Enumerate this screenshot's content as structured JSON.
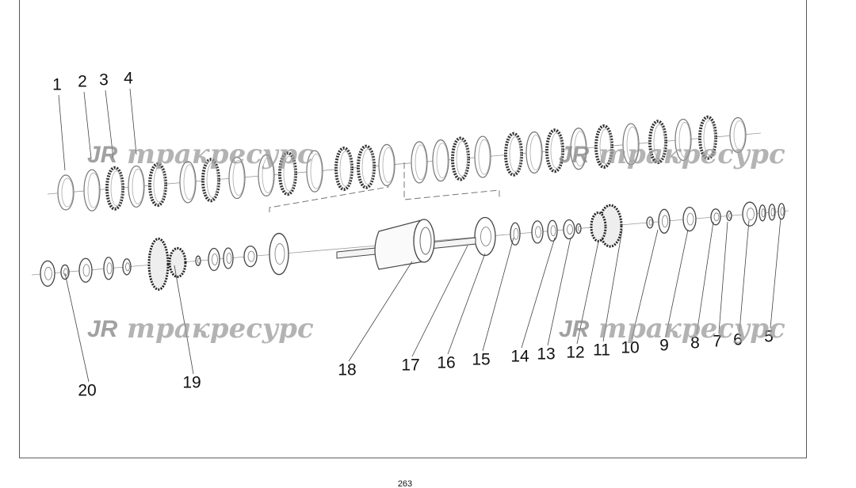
{
  "callouts": [
    "1",
    "2",
    "3",
    "4",
    "5",
    "6",
    "7",
    "8",
    "9",
    "10",
    "11",
    "12",
    "13",
    "14",
    "15",
    "16",
    "17",
    "18",
    "19",
    "20"
  ],
  "watermarks": [
    {
      "logo": "JR",
      "text": "тракресурс"
    },
    {
      "logo": "JR",
      "text": "тракресурс"
    },
    {
      "logo": "JR",
      "text": "тракресурс"
    },
    {
      "logo": "JR",
      "text": "тракресурс"
    }
  ],
  "page_number": "263"
}
